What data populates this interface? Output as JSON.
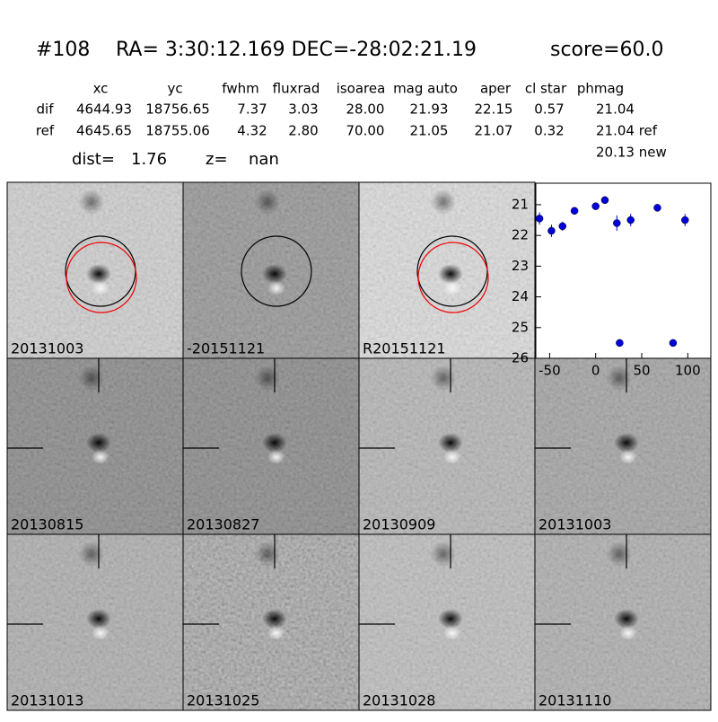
{
  "header": {
    "id": "#108",
    "coords": "RA= 3:30:12.169 DEC=-28:02:21.19",
    "score": "score=60.0"
  },
  "table": {
    "columns": [
      "xc",
      "yc",
      "fwhm",
      "fluxrad",
      "isoarea",
      "mag auto",
      "aper",
      "cl star",
      "phmag"
    ],
    "rows": [
      [
        "dif",
        "4644.93",
        "18756.65",
        "7.37",
        "3.03",
        "28.00",
        "21.93",
        "22.15",
        "0.57",
        "21.04"
      ],
      [
        "ref",
        "4645.65",
        "18755.06",
        "4.32",
        "2.80",
        "70.00",
        "21.05",
        "21.07",
        "0.32",
        "21.04 ref"
      ]
    ],
    "extra": "20.13 new"
  },
  "dist": {
    "dist_label": "dist=",
    "dist": "1.76",
    "z_label": "z=",
    "z": "nan"
  },
  "panels": [
    {
      "label": "20131003"
    },
    {
      "label": "-20151121"
    },
    {
      "label": "R20151121"
    },
    {
      "label": "20130815"
    },
    {
      "label": "20130827"
    },
    {
      "label": "20130909"
    },
    {
      "label": "20131003",
      "color": "#ff0000"
    },
    {
      "label": "20131013"
    },
    {
      "label": "20131025"
    },
    {
      "label": "20131028"
    },
    {
      "label": "20131110"
    }
  ],
  "chart_data": {
    "type": "scatter",
    "color": "#0000dd",
    "x": [
      -61,
      -48,
      -36,
      -23,
      0,
      10,
      23,
      38,
      67,
      97,
      26,
      84
    ],
    "values": [
      21.45,
      21.85,
      21.7,
      21.2,
      21.05,
      20.85,
      21.6,
      21.5,
      21.1,
      21.5,
      25.5,
      25.5
    ],
    "errors": [
      0.2,
      0.2,
      0.15,
      0.1,
      0.1,
      0.05,
      0.25,
      0.2,
      0.1,
      0.2,
      0.1,
      0.1
    ],
    "xlim": [
      -65,
      125
    ],
    "ylim": [
      20.3,
      26
    ],
    "y_inverted": true,
    "xticks": [
      -50,
      0,
      50,
      100
    ],
    "yticks": [
      21,
      22,
      23,
      24,
      25,
      26
    ]
  }
}
